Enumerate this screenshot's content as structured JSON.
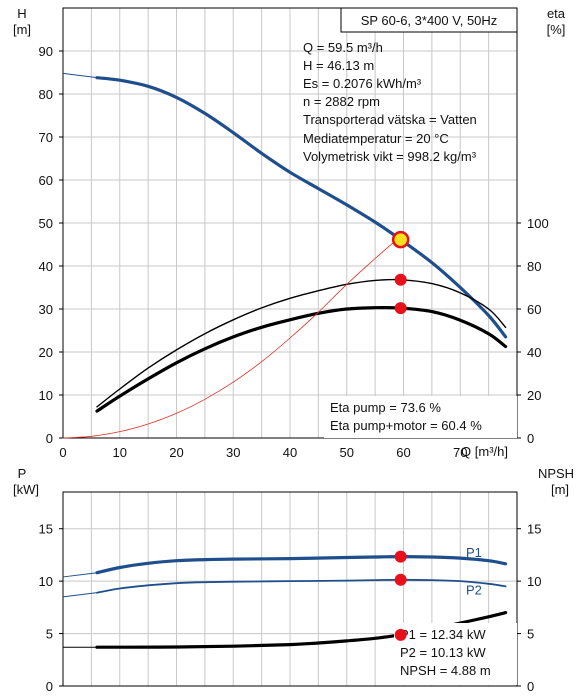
{
  "header": {
    "model": "SP 60-6, 3*400 V, 50Hz"
  },
  "info": {
    "lines": [
      "Q = 59.5 m³/h",
      "H = 46.13 m",
      "Es = 0.2076 kWh/m³",
      "n = 2882 rpm",
      "Transporterad vätska = Vatten",
      "Mediatemperatur = 20 °C",
      "Volymetrisk vikt = 998.2 kg/m³"
    ]
  },
  "eta_box": {
    "lines": [
      "Eta pump = 73.6 %",
      "Eta pump+motor = 60.4 %"
    ]
  },
  "power_box": {
    "lines": [
      "P1 = 12.34 kW",
      "P2 = 10.13 kW",
      "NPSH = 4.88 m"
    ]
  },
  "colors": {
    "head": "#1f4e8c",
    "power": "#1f4e8c",
    "eta": "#000000",
    "eta_system": "#e03020",
    "marker": "#e8101a",
    "marker_op": "#f5e21a",
    "grid": "#c8c8c8"
  },
  "chart_data": [
    {
      "type": "line",
      "title": "",
      "xlabel": "Q [m³/h]",
      "ylabel_left": [
        "H",
        "[m]"
      ],
      "ylabel_right": [
        "eta",
        "[%]"
      ],
      "xlim": [
        0,
        80
      ],
      "ylim_left": [
        0,
        100
      ],
      "ylim_right": [
        0,
        200
      ],
      "x_ticks": [
        0,
        10,
        20,
        30,
        40,
        50,
        60,
        70
      ],
      "y_ticks_left": [
        0,
        10,
        20,
        30,
        40,
        50,
        60,
        70,
        80,
        90
      ],
      "y_ticks_right": [
        0,
        20,
        40,
        60,
        80,
        100
      ],
      "grid": true,
      "series": [
        {
          "name": "H",
          "axis": "left",
          "style": "thick-blue",
          "x": [
            6,
            10,
            15,
            20,
            25,
            30,
            35,
            40,
            45,
            50,
            55,
            59.5,
            65,
            70,
            75,
            78
          ],
          "y": [
            83.8,
            83.2,
            81.8,
            79.2,
            75.5,
            71,
            66.2,
            61.8,
            58,
            54.2,
            50.2,
            46.13,
            40.8,
            35,
            28.5,
            23.5
          ]
        },
        {
          "name": "Eta pump",
          "axis": "right",
          "style": "thin-black",
          "x": [
            6,
            10,
            15,
            20,
            25,
            30,
            35,
            40,
            45,
            50,
            55,
            59.5,
            65,
            70,
            75,
            78
          ],
          "y": [
            14.5,
            22.8,
            32.5,
            41,
            48.5,
            55,
            60.5,
            65,
            68.5,
            71.5,
            73.3,
            73.6,
            71.8,
            67.5,
            60,
            51.5
          ]
        },
        {
          "name": "Eta pump+motor",
          "axis": "right",
          "style": "thick-black",
          "x": [
            6,
            10,
            15,
            20,
            25,
            30,
            35,
            40,
            45,
            50,
            55,
            59.5,
            65,
            70,
            75,
            78
          ],
          "y": [
            12.5,
            19.5,
            27.5,
            35,
            41.5,
            47,
            51.5,
            55,
            58,
            60,
            60.6,
            60.4,
            58.8,
            54.8,
            48.5,
            42.5
          ]
        },
        {
          "name": "",
          "axis": "right",
          "style": "thin-red",
          "x": [
            0,
            5,
            10,
            15,
            20,
            25,
            30,
            35,
            40,
            45,
            50,
            55,
            60
          ],
          "y": [
            0,
            0.8,
            3,
            6.5,
            11.5,
            18,
            26,
            35.5,
            46.5,
            58.5,
            71.5,
            83.5,
            95
          ]
        }
      ],
      "markers": [
        {
          "axis": "left",
          "x": 59.5,
          "y": 46.13,
          "kind": "operating-point"
        },
        {
          "axis": "right",
          "x": 59.5,
          "y": 73.6,
          "kind": "point"
        },
        {
          "axis": "right",
          "x": 59.5,
          "y": 60.4,
          "kind": "point"
        }
      ]
    },
    {
      "type": "line",
      "title": "",
      "xlabel": "",
      "ylabel_left": [
        "P",
        "[kW]"
      ],
      "ylabel_right": [
        "NPSH",
        "[m]"
      ],
      "xlim": [
        0,
        80
      ],
      "ylim_left": [
        0,
        18.5
      ],
      "ylim_right": [
        0,
        18.5
      ],
      "y_ticks_left": [
        0,
        5,
        10,
        15
      ],
      "y_ticks_right": [
        0,
        5,
        10,
        15
      ],
      "grid": true,
      "series": [
        {
          "name": "P1",
          "axis": "left",
          "style": "thick-blue",
          "x": [
            6,
            10,
            15,
            20,
            25,
            30,
            40,
            50,
            55,
            59.5,
            65,
            70,
            75,
            78
          ],
          "y": [
            10.8,
            11.3,
            11.7,
            11.95,
            12.05,
            12.1,
            12.15,
            12.25,
            12.3,
            12.34,
            12.3,
            12.2,
            11.95,
            11.65
          ]
        },
        {
          "name": "P2",
          "axis": "left",
          "style": "medium-blue",
          "x": [
            6,
            10,
            15,
            20,
            25,
            30,
            40,
            50,
            55,
            59.5,
            65,
            70,
            75,
            78
          ],
          "y": [
            8.9,
            9.3,
            9.6,
            9.8,
            9.9,
            9.95,
            10.0,
            10.05,
            10.1,
            10.13,
            10.1,
            10.0,
            9.75,
            9.5
          ]
        },
        {
          "name": "NPSH",
          "axis": "right",
          "style": "thick-black",
          "x": [
            6,
            10,
            20,
            30,
            40,
            45,
            50,
            55,
            59.5,
            65,
            70,
            75,
            78
          ],
          "y": [
            3.7,
            3.7,
            3.72,
            3.8,
            3.95,
            4.1,
            4.3,
            4.55,
            4.88,
            5.4,
            6.0,
            6.6,
            7.0
          ]
        }
      ],
      "markers": [
        {
          "axis": "left",
          "x": 59.5,
          "y": 12.34,
          "kind": "point"
        },
        {
          "axis": "left",
          "x": 59.5,
          "y": 10.13,
          "kind": "point"
        },
        {
          "axis": "right",
          "x": 59.5,
          "y": 4.88,
          "kind": "point"
        }
      ]
    }
  ]
}
